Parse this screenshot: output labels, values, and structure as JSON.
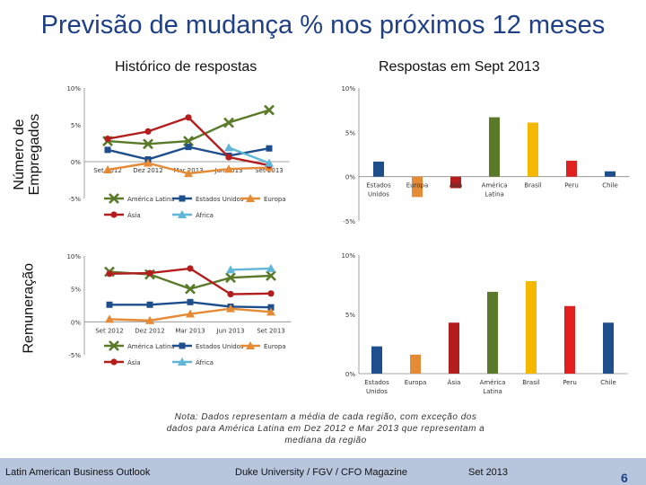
{
  "title": "Previsão de mudança % nos próximos 12 meses",
  "left_header": "Histórico de respostas",
  "right_header": "Respostas em Sept 2013",
  "row_labels": {
    "employees": [
      "Número de",
      "Empregados"
    ],
    "compensation": [
      "Remuneração"
    ]
  },
  "note_lines": [
    "Nota: Dados representam a média de cada região, com exceção dos",
    "dados para América Latina em Dez 2012 e Mar 2013 que representam a",
    "mediana da região"
  ],
  "footer": {
    "left": "Latin American Business Outlook",
    "center": "Duke University / FGV / CFO Magazine",
    "right": "Set 2013",
    "page": "6"
  },
  "chart_data": [
    {
      "id": "employees_history",
      "type": "line",
      "title": "Histórico de respostas",
      "ylabel": "Número de Empregados",
      "x": [
        "Set 2012",
        "Dez 2012",
        "Mar 2013",
        "Jun 2013",
        "Set 2013"
      ],
      "ylim": [
        -5,
        10
      ],
      "yticks": [
        -5,
        0,
        5,
        10
      ],
      "ytick_labels": [
        "-5%",
        "0%",
        "5%",
        "10%"
      ],
      "series": [
        {
          "name": "América Latina",
          "color": "#5a7a2a",
          "marker": "x",
          "values": [
            2.8,
            2.4,
            2.8,
            5.3,
            7.0
          ]
        },
        {
          "name": "Estados Unidos",
          "color": "#1f4e8c",
          "marker": "s",
          "values": [
            1.6,
            0.3,
            2.0,
            0.8,
            1.8
          ]
        },
        {
          "name": "Europa",
          "color": "#e58a35",
          "marker": "^",
          "values": [
            -1.1,
            -0.2,
            -1.6,
            -1.0,
            -0.8
          ]
        },
        {
          "name": "Ásia",
          "color": "#b41d1d",
          "marker": "o",
          "values": [
            3.1,
            4.1,
            6.0,
            0.6,
            -0.5
          ]
        },
        {
          "name": "África",
          "color": "#5fb6d9",
          "marker": "^",
          "values": [
            null,
            null,
            null,
            1.9,
            -0.2
          ]
        }
      ]
    },
    {
      "id": "employees_sept2013",
      "type": "bar",
      "title": "Respostas em Sept 2013",
      "categories": [
        "Estados Unidos",
        "Europa",
        "Ásia",
        "América Latina",
        "Brasil",
        "Peru",
        "Chile"
      ],
      "values": [
        1.7,
        -2.3,
        -1.3,
        6.7,
        6.1,
        1.8,
        0.6
      ],
      "colors": [
        "#1f4e8c",
        "#e58a35",
        "#b41d1d",
        "#5a7a2a",
        "#f5b800",
        "#e01f1f",
        "#1f4e8c"
      ],
      "ylim": [
        -5,
        10
      ],
      "yticks": [
        -5,
        0,
        5,
        10
      ],
      "ytick_labels": [
        "-5%",
        "0%",
        "5%",
        "10%"
      ]
    },
    {
      "id": "compensation_history",
      "type": "line",
      "title": "Histórico de respostas",
      "ylabel": "Remuneração",
      "x": [
        "Set 2012",
        "Dez 2012",
        "Mar 2013",
        "Jun 2013",
        "Set 2013"
      ],
      "ylim": [
        -5,
        10
      ],
      "yticks": [
        -5,
        0,
        5,
        10
      ],
      "ytick_labels": [
        "-5%",
        "0%",
        "5%",
        "10%"
      ],
      "series": [
        {
          "name": "América Latina",
          "color": "#5a7a2a",
          "marker": "x",
          "values": [
            7.6,
            7.2,
            5.0,
            6.7,
            7.0
          ]
        },
        {
          "name": "Estados Unidos",
          "color": "#1f4e8c",
          "marker": "s",
          "values": [
            2.6,
            2.6,
            3.0,
            2.3,
            2.2
          ]
        },
        {
          "name": "Europa",
          "color": "#e58a35",
          "marker": "^",
          "values": [
            0.4,
            0.2,
            1.2,
            2.0,
            1.5
          ]
        },
        {
          "name": "Ásia",
          "color": "#b41d1d",
          "marker": "o",
          "values": [
            7.3,
            7.4,
            8.1,
            4.2,
            4.3
          ]
        },
        {
          "name": "África",
          "color": "#5fb6d9",
          "marker": "^",
          "values": [
            null,
            null,
            null,
            7.9,
            8.1
          ]
        }
      ]
    },
    {
      "id": "compensation_sept2013",
      "type": "bar",
      "title": "Respostas em Sept 2013",
      "categories": [
        "Estados Unidos",
        "Europa",
        "Ásia",
        "América Latina",
        "Brasil",
        "Peru",
        "Chile"
      ],
      "values": [
        2.3,
        1.6,
        4.3,
        6.9,
        7.8,
        5.7,
        4.3
      ],
      "colors": [
        "#1f4e8c",
        "#e58a35",
        "#b41d1d",
        "#5a7a2a",
        "#f5b800",
        "#e01f1f",
        "#1f4e8c"
      ],
      "ylim": [
        0,
        10
      ],
      "yticks": [
        0,
        5,
        10
      ],
      "ytick_labels": [
        "0%",
        "5%",
        "10%"
      ]
    }
  ]
}
